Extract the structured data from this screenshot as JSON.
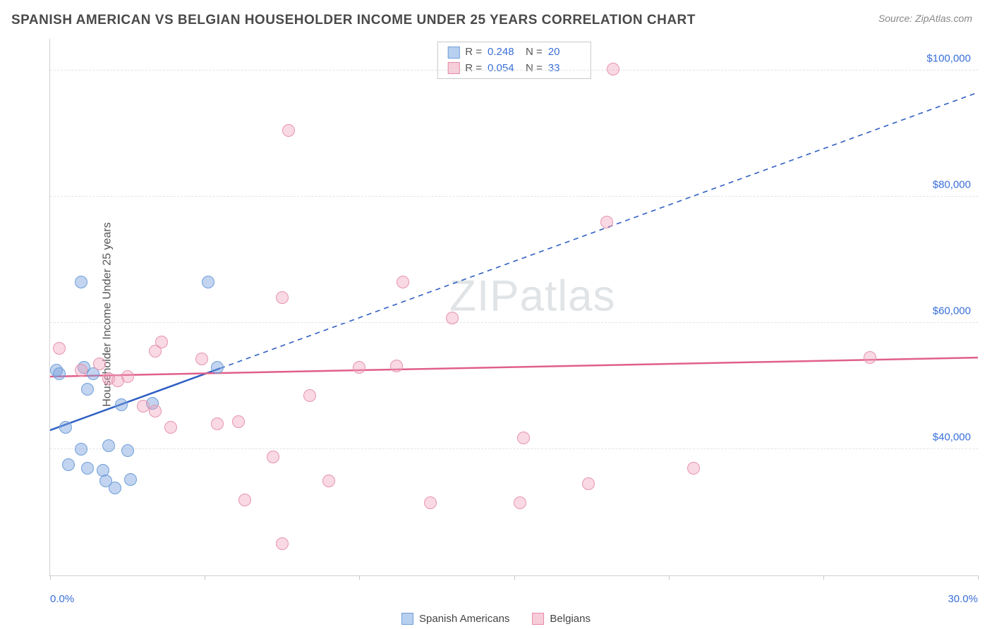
{
  "title": "SPANISH AMERICAN VS BELGIAN HOUSEHOLDER INCOME UNDER 25 YEARS CORRELATION CHART",
  "source": "Source: ZipAtlas.com",
  "watermark": "ZIPatlas",
  "chart": {
    "type": "scatter",
    "y_axis_title": "Householder Income Under 25 years",
    "x_min": 0.0,
    "x_max": 30.0,
    "x_label_min": "0.0%",
    "x_label_max": "30.0%",
    "x_ticks": [
      0,
      5,
      10,
      15,
      20,
      25,
      30
    ],
    "y_min": 20000,
    "y_max": 105000,
    "y_grid": [
      {
        "value": 40000,
        "label": "$40,000"
      },
      {
        "value": 60000,
        "label": "$60,000"
      },
      {
        "value": 80000,
        "label": "$80,000"
      },
      {
        "value": 100000,
        "label": "$100,000"
      }
    ],
    "background_color": "#ffffff",
    "grid_color": "#e3e3e3",
    "point_radius": 9,
    "series": [
      {
        "name": "Spanish Americans",
        "fill": "rgba(120,160,220,0.45)",
        "stroke": "#6f9edb",
        "swatch_fill": "#b8d0ef",
        "swatch_border": "#6f9edb",
        "r_value": "0.248",
        "n_value": "20",
        "trend": {
          "color": "#2e5fc4",
          "solid_x0": 0.0,
          "solid_y0": 43000,
          "solid_x1": 5.5,
          "solid_y1": 52800,
          "dash_x1": 30.0,
          "dash_y1": 96500
        },
        "points": [
          {
            "x": 0.2,
            "y": 52500
          },
          {
            "x": 0.3,
            "y": 52000
          },
          {
            "x": 1.1,
            "y": 53000
          },
          {
            "x": 1.4,
            "y": 52000
          },
          {
            "x": 1.0,
            "y": 66500
          },
          {
            "x": 1.2,
            "y": 49500
          },
          {
            "x": 0.5,
            "y": 43500
          },
          {
            "x": 2.3,
            "y": 47000
          },
          {
            "x": 1.0,
            "y": 40000
          },
          {
            "x": 1.9,
            "y": 40500
          },
          {
            "x": 2.5,
            "y": 39800
          },
          {
            "x": 0.6,
            "y": 37500
          },
          {
            "x": 1.2,
            "y": 37000
          },
          {
            "x": 1.7,
            "y": 36700
          },
          {
            "x": 1.8,
            "y": 35000
          },
          {
            "x": 2.6,
            "y": 35200
          },
          {
            "x": 2.1,
            "y": 33800
          },
          {
            "x": 5.4,
            "y": 53000
          },
          {
            "x": 5.1,
            "y": 66500
          },
          {
            "x": 3.3,
            "y": 47200
          }
        ]
      },
      {
        "name": "Belgians",
        "fill": "rgba(240,160,185,0.40)",
        "stroke": "#e794ae",
        "swatch_fill": "#f6cdd9",
        "swatch_border": "#e88ba7",
        "r_value": "0.054",
        "n_value": "33",
        "trend": {
          "color": "#e05f8b",
          "solid_x0": 0.0,
          "solid_y0": 51500,
          "solid_x1": 30.0,
          "solid_y1": 54500,
          "dash_x1": 30.0,
          "dash_y1": 54500
        },
        "points": [
          {
            "x": 0.3,
            "y": 56000
          },
          {
            "x": 1.6,
            "y": 53500
          },
          {
            "x": 1.0,
            "y": 52500
          },
          {
            "x": 2.5,
            "y": 51500
          },
          {
            "x": 1.9,
            "y": 51200
          },
          {
            "x": 3.6,
            "y": 57000
          },
          {
            "x": 3.4,
            "y": 55500
          },
          {
            "x": 4.9,
            "y": 54300
          },
          {
            "x": 3.0,
            "y": 46800
          },
          {
            "x": 3.4,
            "y": 46000
          },
          {
            "x": 3.9,
            "y": 43500
          },
          {
            "x": 5.4,
            "y": 44000
          },
          {
            "x": 6.1,
            "y": 44300
          },
          {
            "x": 6.3,
            "y": 32000
          },
          {
            "x": 7.5,
            "y": 64000
          },
          {
            "x": 7.7,
            "y": 90500
          },
          {
            "x": 7.2,
            "y": 38800
          },
          {
            "x": 8.4,
            "y": 48500
          },
          {
            "x": 9.0,
            "y": 35000
          },
          {
            "x": 7.5,
            "y": 25000
          },
          {
            "x": 10.0,
            "y": 53000
          },
          {
            "x": 11.2,
            "y": 53200
          },
          {
            "x": 11.4,
            "y": 66500
          },
          {
            "x": 12.3,
            "y": 31500
          },
          {
            "x": 13.0,
            "y": 60800
          },
          {
            "x": 15.3,
            "y": 41800
          },
          {
            "x": 15.2,
            "y": 31500
          },
          {
            "x": 17.4,
            "y": 34500
          },
          {
            "x": 18.0,
            "y": 76000
          },
          {
            "x": 18.2,
            "y": 100200
          },
          {
            "x": 20.8,
            "y": 37000
          },
          {
            "x": 26.5,
            "y": 54500
          },
          {
            "x": 2.2,
            "y": 50800
          }
        ]
      }
    ],
    "stats_legend_labels": {
      "r": "R  =",
      "n": "N  ="
    }
  }
}
